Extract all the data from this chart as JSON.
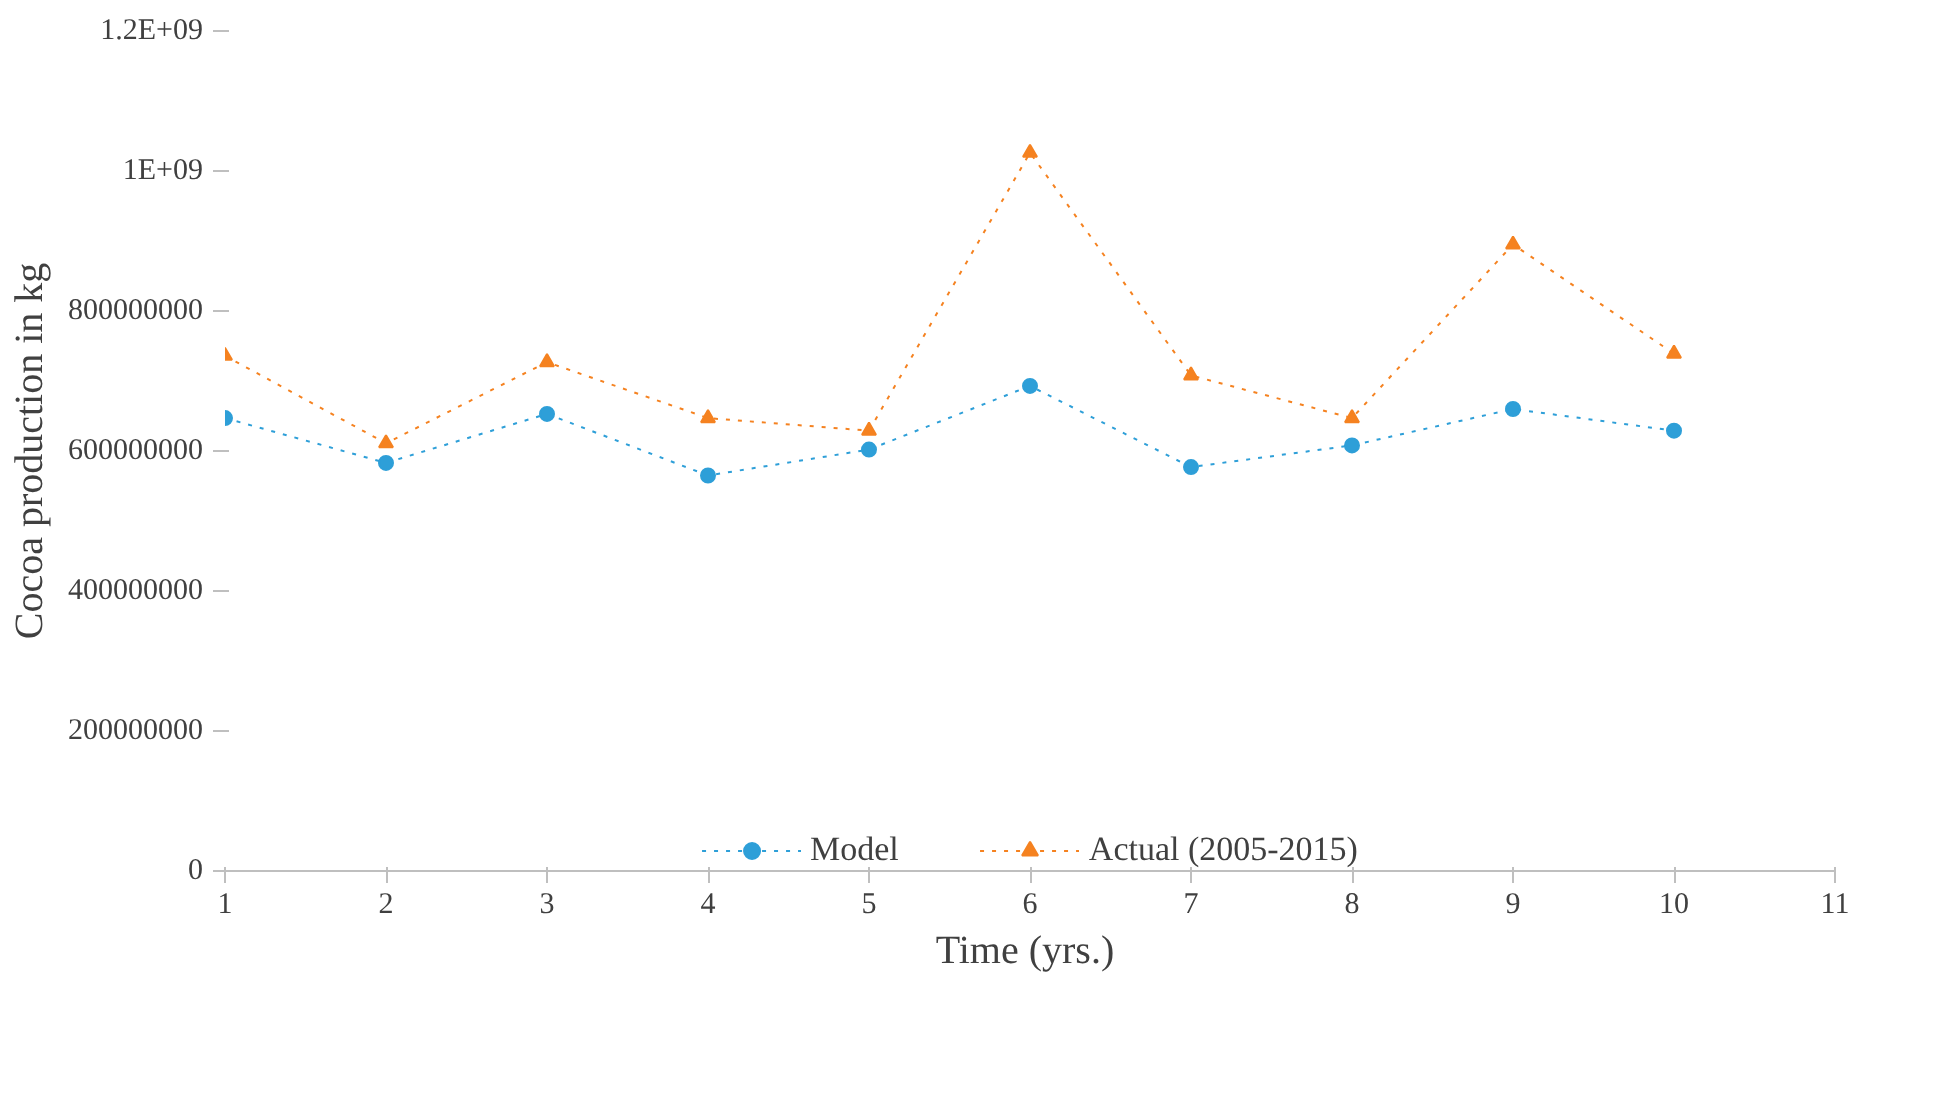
{
  "chart_data": {
    "type": "line",
    "xlabel": "Time  (yrs.)",
    "ylabel": "Cocoa production in kg",
    "x": [
      1,
      2,
      3,
      4,
      5,
      6,
      7,
      8,
      9,
      10
    ],
    "series": [
      {
        "name": "Model",
        "color": "#2e9fd8",
        "marker": "circle",
        "values": [
          647000000,
          583000000,
          653000000,
          565000000,
          602000000,
          693000000,
          577000000,
          608000000,
          660000000,
          629000000
        ]
      },
      {
        "name": "Actual (2005-2015)",
        "color": "#f58220",
        "marker": "triangle",
        "values": [
          736000000,
          611000000,
          727000000,
          647000000,
          629000000,
          1026000000,
          708000000,
          647000000,
          895000000,
          739000000
        ]
      }
    ],
    "xlim": [
      1,
      11
    ],
    "xticks": [
      1,
      2,
      3,
      4,
      5,
      6,
      7,
      8,
      9,
      10,
      11
    ],
    "ylim": [
      0,
      1200000000
    ],
    "yticks": [
      0,
      200000000,
      400000000,
      600000000,
      800000000,
      {
        "value": 1000000000,
        "label": "1E+09"
      },
      {
        "value": 1200000000,
        "label": "1.2E+09"
      }
    ],
    "legend": "bottom",
    "line_style": "dotted"
  }
}
